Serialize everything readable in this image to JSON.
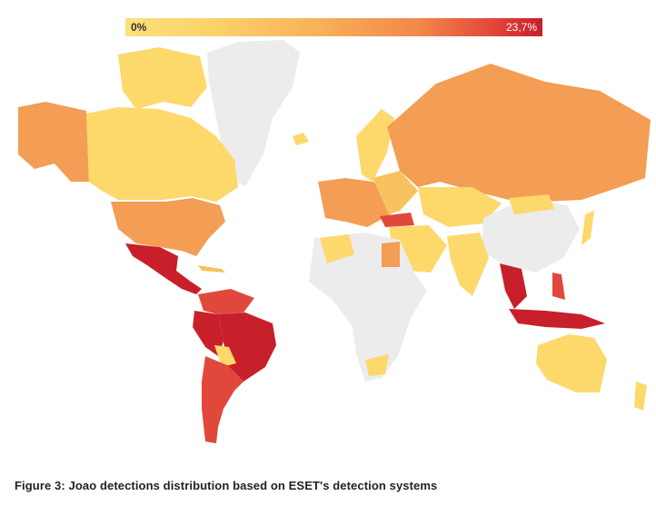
{
  "legend": {
    "min_label": "0%",
    "max_label": "23,7%",
    "low_color": "#fde07a",
    "high_color": "#c81e2a"
  },
  "caption": "Figure 3: Joao detections distribution based on ESET's detection systems",
  "colors": {
    "no_data": "#ececec",
    "low": "#fdd86b",
    "mid_low": "#f8c25f",
    "mid": "#f39d55",
    "high": "#e0483b",
    "max": "#c8202a"
  }
}
